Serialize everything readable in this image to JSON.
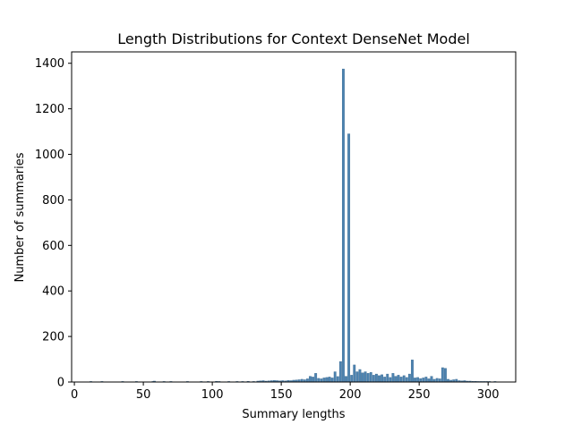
{
  "chart_data": {
    "type": "bar",
    "title": "Length Distributions for Context DenseNet Model",
    "xlabel": "Summary lengths",
    "ylabel": "Number of summaries",
    "xlim": [
      -2,
      320
    ],
    "ylim": [
      0,
      1450
    ],
    "xticks": [
      0,
      50,
      100,
      150,
      200,
      250,
      300
    ],
    "yticks": [
      0,
      200,
      400,
      600,
      800,
      1000,
      1200,
      1400
    ],
    "grid": false,
    "legend": false,
    "bar_width": 1.6,
    "color": "#4e84b1",
    "edge_color": "#3b6a91",
    "x": [
      12,
      20,
      35,
      45,
      57,
      58,
      65,
      70,
      82,
      92,
      97,
      103,
      105,
      112,
      118,
      122,
      126,
      130,
      133,
      135,
      137,
      139,
      141,
      143,
      145,
      147,
      149,
      151,
      153,
      155,
      157,
      159,
      161,
      163,
      165,
      167,
      169,
      171,
      173,
      175,
      177,
      179,
      181,
      183,
      185,
      187,
      189,
      191,
      193,
      195,
      197,
      199,
      201,
      203,
      205,
      207,
      209,
      211,
      213,
      215,
      217,
      219,
      221,
      223,
      225,
      227,
      229,
      231,
      233,
      235,
      237,
      239,
      241,
      243,
      245,
      247,
      249,
      251,
      253,
      255,
      257,
      259,
      261,
      263,
      265,
      267,
      269,
      271,
      273,
      275,
      277,
      279,
      281,
      283,
      285,
      287,
      289,
      291,
      293,
      295,
      297,
      299,
      301,
      305
    ],
    "values": [
      1,
      1,
      1,
      1,
      2,
      4,
      2,
      2,
      1,
      1,
      2,
      3,
      2,
      1,
      2,
      2,
      3,
      2,
      4,
      5,
      6,
      4,
      5,
      6,
      7,
      6,
      5,
      6,
      5,
      7,
      6,
      8,
      9,
      10,
      12,
      10,
      14,
      25,
      22,
      38,
      16,
      14,
      18,
      20,
      22,
      18,
      45,
      24,
      90,
      1375,
      25,
      1090,
      30,
      75,
      45,
      55,
      40,
      45,
      38,
      42,
      30,
      35,
      28,
      32,
      22,
      35,
      20,
      38,
      25,
      30,
      22,
      28,
      20,
      35,
      97,
      18,
      20,
      15,
      18,
      22,
      14,
      25,
      12,
      16,
      14,
      63,
      60,
      12,
      8,
      10,
      12,
      6,
      5,
      6,
      4,
      4,
      3,
      3,
      2,
      2,
      2,
      1,
      1,
      1
    ]
  }
}
